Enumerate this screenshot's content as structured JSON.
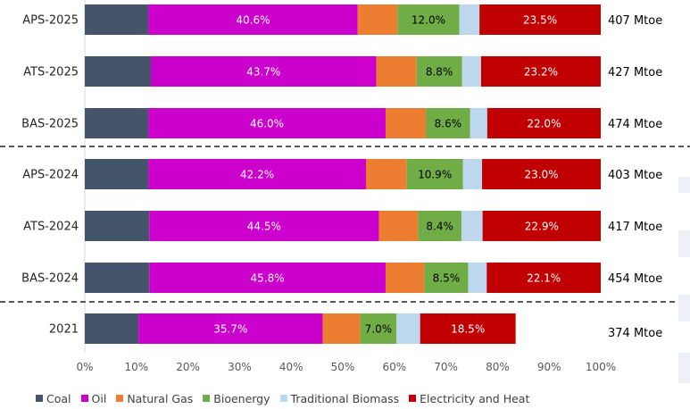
{
  "chart_data": {
    "type": "bar",
    "orientation": "horizontal",
    "stacked": true,
    "percent": true,
    "categories": [
      "APS-2025",
      "ATS-2025",
      "BAS-2025",
      "APS-2024",
      "ATS-2024",
      "BAS-2024",
      "2021"
    ],
    "totals": [
      "407 Mtoe",
      "427 Mtoe",
      "474 Mtoe",
      "403 Mtoe",
      "417 Mtoe",
      "454 Mtoe",
      "374 Mtoe"
    ],
    "series": [
      {
        "name": "Coal",
        "color": "#44546a",
        "values": [
          12.3,
          12.8,
          12.3,
          12.3,
          12.5,
          12.5,
          10.4
        ]
      },
      {
        "name": "Oil",
        "color": "#cc00cc",
        "values": [
          40.6,
          43.7,
          46.0,
          42.2,
          44.5,
          45.8,
          35.7
        ]
      },
      {
        "name": "Natural Gas",
        "color": "#ed7d31",
        "values": [
          7.7,
          7.8,
          7.8,
          7.9,
          7.6,
          7.5,
          7.3
        ]
      },
      {
        "name": "Bioenergy",
        "color": "#70ad47",
        "values": [
          12.0,
          8.8,
          8.6,
          10.9,
          8.4,
          8.5,
          7.0
        ]
      },
      {
        "name": "Traditional Biomass",
        "color": "#bdd7ee",
        "values": [
          3.9,
          3.7,
          3.3,
          3.7,
          4.1,
          3.6,
          4.6
        ]
      },
      {
        "name": "Electricity and Heat",
        "color": "#c00000",
        "values": [
          23.5,
          23.2,
          22.0,
          23.0,
          22.9,
          22.1,
          18.5
        ]
      }
    ],
    "segment_labels": [
      [
        null,
        "40.6%",
        null,
        "12.0%",
        null,
        "23.5%"
      ],
      [
        null,
        "43.7%",
        null,
        "8.8%",
        null,
        "23.2%"
      ],
      [
        null,
        "46.0%",
        null,
        "8.6%",
        null,
        "22.0%"
      ],
      [
        null,
        "42.2%",
        null,
        "10.9%",
        null,
        "23.0%"
      ],
      [
        null,
        "44.5%",
        null,
        "8.4%",
        null,
        "22.9%"
      ],
      [
        null,
        "45.8%",
        null,
        "8.5%",
        null,
        "22.1%"
      ],
      [
        null,
        "35.7%",
        null,
        "7.0%",
        null,
        "18.5%"
      ]
    ],
    "xlim": [
      0,
      100
    ],
    "xticks": [
      "0%",
      "10%",
      "20%",
      "30%",
      "40%",
      "50%",
      "60%",
      "70%",
      "80%",
      "90%",
      "100%"
    ],
    "group_separators_after": [
      "BAS-2025",
      "BAS-2024"
    ],
    "legend_position": "bottom",
    "grid": false
  }
}
